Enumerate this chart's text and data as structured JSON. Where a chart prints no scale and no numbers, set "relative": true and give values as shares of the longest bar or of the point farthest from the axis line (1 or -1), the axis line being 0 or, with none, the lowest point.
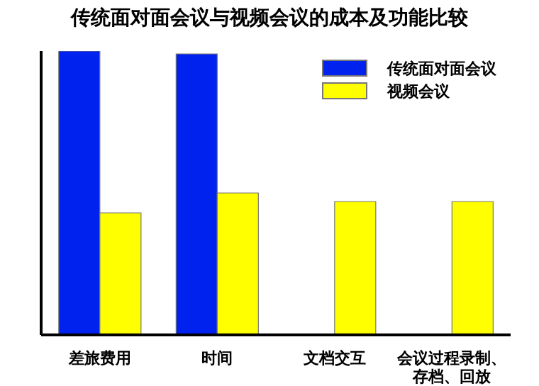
{
  "chart_data": {
    "type": "bar",
    "title": "传统面对面会议与视频会议的成本及功能比较",
    "relative": true,
    "categories": [
      "差旅费用",
      "时间",
      "文档交互",
      "会议过程录制、存档、回放"
    ],
    "series": [
      {
        "name": "传统面对面会议",
        "color": "#0022ee",
        "values": [
          1,
          0.99,
          null,
          null
        ]
      },
      {
        "name": "视频会议",
        "color": "#ffff00",
        "values": [
          0.43,
          0.5,
          0.47,
          0.47
        ]
      }
    ],
    "legend": "top right",
    "grid": false
  }
}
